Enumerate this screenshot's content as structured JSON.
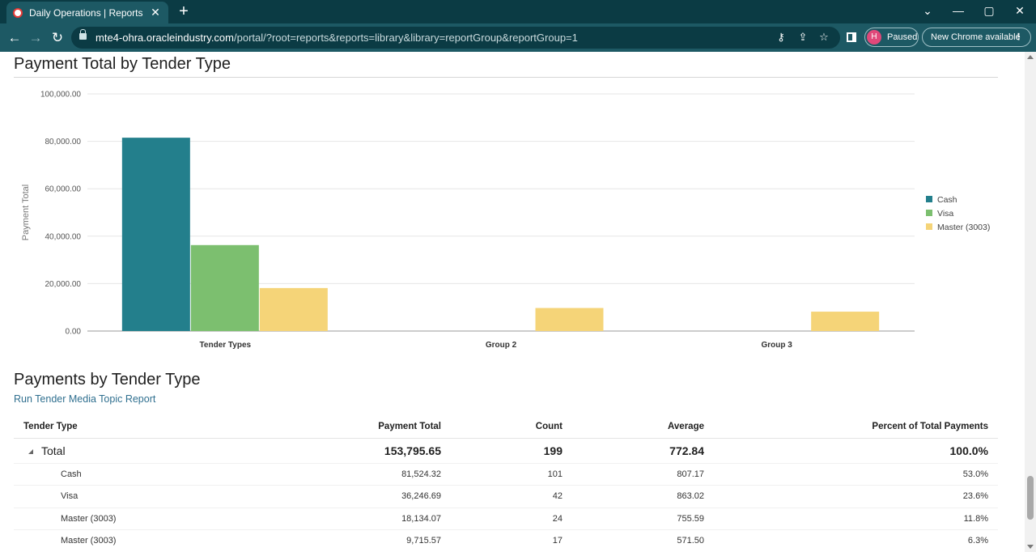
{
  "browser": {
    "tab_title": "Daily Operations | Reports | ATG",
    "new_tab_label": "+",
    "url_host": "mte4-ohra.oracleindustry.com",
    "url_path": "/portal/?root=reports&reports=library&library=reportGroup&reportGroup=1",
    "profile_initial": "H",
    "profile_status": "Paused",
    "update_label": "New Chrome available"
  },
  "chart_section": {
    "title": "Payment Total by Tender Type"
  },
  "chart_data": {
    "type": "bar",
    "title": "",
    "xlabel": "",
    "ylabel": "Payment Total",
    "categories": [
      "Tender Types",
      "Group 2",
      "Group 3"
    ],
    "series": [
      {
        "name": "Cash",
        "color": "#237f8c",
        "values": [
          81524.32,
          0,
          0
        ]
      },
      {
        "name": "Visa",
        "color": "#7cbf6f",
        "values": [
          36246.69,
          0,
          0
        ]
      },
      {
        "name": "Master (3003)",
        "color": "#f5d478",
        "values": [
          18134.07,
          9715.57,
          8175.0
        ]
      }
    ],
    "ylim": [
      0,
      100000
    ],
    "yticks": [
      "0.00",
      "20,000.00",
      "40,000.00",
      "60,000.00",
      "80,000.00",
      "100,000.00"
    ],
    "grid": true,
    "legend_position": "right"
  },
  "table_section": {
    "title": "Payments by Tender Type",
    "link_label": "Run Tender Media Topic Report",
    "columns": [
      "Tender Type",
      "Payment Total",
      "Count",
      "Average",
      "Percent of Total Payments"
    ],
    "total_row": [
      "Total",
      "153,795.65",
      "199",
      "772.84",
      "100.0%"
    ],
    "rows": [
      [
        "Cash",
        "81,524.32",
        "101",
        "807.17",
        "53.0%"
      ],
      [
        "Visa",
        "36,246.69",
        "42",
        "863.02",
        "23.6%"
      ],
      [
        "Master (3003)",
        "18,134.07",
        "24",
        "755.59",
        "11.8%"
      ],
      [
        "Master (3003)",
        "9,715.57",
        "17",
        "571.50",
        "6.3%"
      ]
    ]
  }
}
